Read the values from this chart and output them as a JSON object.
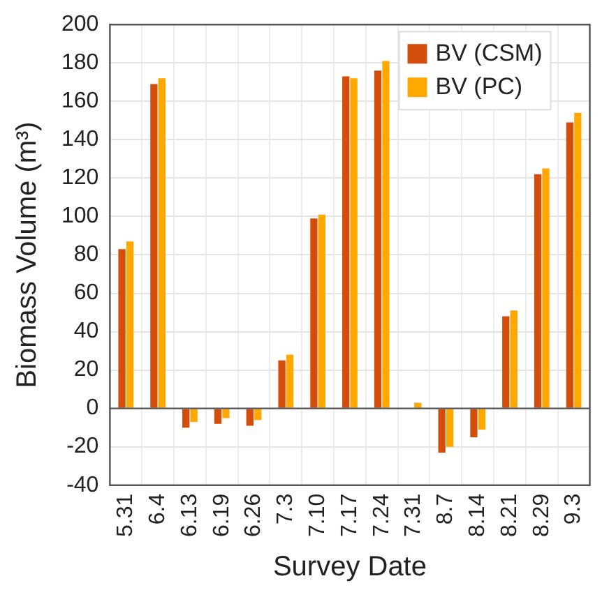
{
  "chart_data": {
    "type": "bar",
    "xlabel": "Survey Date",
    "ylabel": "Biomass Volume (m³)",
    "categories": [
      "5.31",
      "6.4",
      "6.13",
      "6.19",
      "6.26",
      "7.3",
      "7.10",
      "7.17",
      "7.24",
      "7.31",
      "8.7",
      "8.14",
      "8.21",
      "8.29",
      "9.3"
    ],
    "series": [
      {
        "name": "BV (CSM)",
        "color": "#d54d0b",
        "values": [
          83,
          169,
          -10,
          -8,
          -9,
          25,
          99,
          173,
          176,
          0,
          -23,
          -15,
          48,
          122,
          149
        ]
      },
      {
        "name": "BV (PC)",
        "color": "#ffa800",
        "values": [
          87,
          172,
          -7,
          -5,
          -6,
          28,
          101,
          172,
          181,
          3,
          -20,
          -11,
          51,
          125,
          154
        ]
      }
    ],
    "ylim": [
      -40,
      200
    ],
    "yticks": [
      -40,
      -20,
      0,
      20,
      40,
      60,
      80,
      100,
      120,
      140,
      160,
      180,
      200
    ],
    "grid": true,
    "legend": "top right"
  }
}
